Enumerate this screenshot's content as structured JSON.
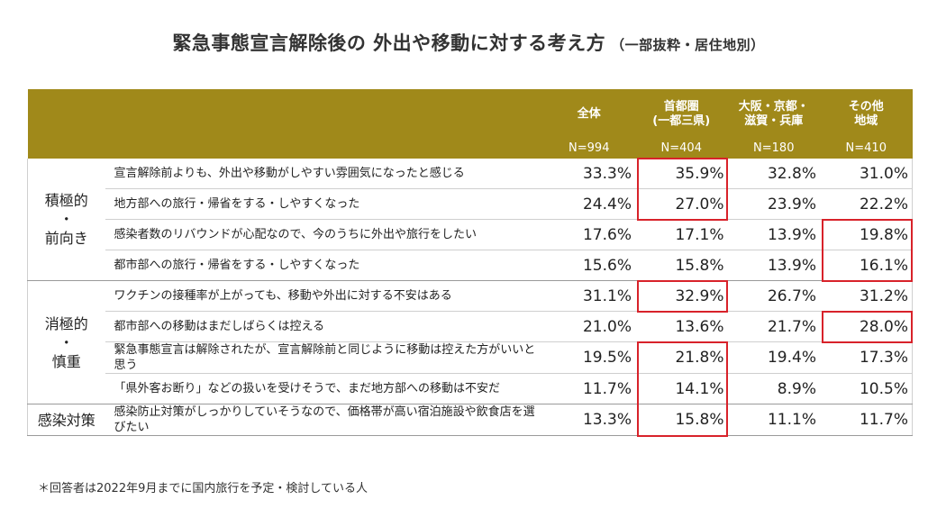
{
  "title": "緊急事態宣言解除後の 外出や移動に対する考え方",
  "subtitle": "（一部抜粋・居住地別）",
  "highlight_color": "#d8222a",
  "header_color": "#a0891a",
  "columns": [
    {
      "label": "全体",
      "n": "N=994"
    },
    {
      "label": "首都圏\n(一都三県)",
      "n": "N=404"
    },
    {
      "label": "大阪・京都・\n滋賀・兵庫",
      "n": "N=180"
    },
    {
      "label": "その他\n地域",
      "n": "N=410"
    }
  ],
  "groups": [
    {
      "label": "積極的\n・\n前向き"
    },
    {
      "label": "消極的\n・\n慎重"
    },
    {
      "label": "感染対策"
    }
  ],
  "note": "＊回答者は2022年9月までに国内旅行を予定・検討している人",
  "chart_data": {
    "type": "table",
    "title": "緊急事態宣言解除後の 外出や移動に対する考え方",
    "subtitle": "（一部抜粋・居住地別）",
    "columns": [
      "全体",
      "首都圏(一都三県)",
      "大阪・京都・滋賀・兵庫",
      "その他地域"
    ],
    "sample_sizes": [
      "N=994",
      "N=404",
      "N=180",
      "N=410"
    ],
    "rows": [
      {
        "group": "積極的・前向き",
        "item": "宣言解除前よりも、外出や移動がしやすい雰囲気になったと感じる",
        "values": [
          "33.3%",
          "35.9%",
          "32.8%",
          "31.0%"
        ],
        "highlight": [
          false,
          true,
          false,
          false
        ]
      },
      {
        "group": "積極的・前向き",
        "item": "地方部への旅行・帰省をする・しやすくなった",
        "values": [
          "24.4%",
          "27.0%",
          "23.9%",
          "22.2%"
        ],
        "highlight": [
          false,
          true,
          false,
          false
        ]
      },
      {
        "group": "積極的・前向き",
        "item": "感染者数のリバウンドが心配なので、今のうちに外出や旅行をしたい",
        "values": [
          "17.6%",
          "17.1%",
          "13.9%",
          "19.8%"
        ],
        "highlight": [
          false,
          false,
          false,
          true
        ]
      },
      {
        "group": "積極的・前向き",
        "item": "都市部への旅行・帰省をする・しやすくなった",
        "values": [
          "15.6%",
          "15.8%",
          "13.9%",
          "16.1%"
        ],
        "highlight": [
          false,
          false,
          false,
          true
        ]
      },
      {
        "group": "消極的・慎重",
        "item": "ワクチンの接種率が上がっても、移動や外出に対する不安はある",
        "values": [
          "31.1%",
          "32.9%",
          "26.7%",
          "31.2%"
        ],
        "highlight": [
          false,
          true,
          false,
          false
        ]
      },
      {
        "group": "消極的・慎重",
        "item": "都市部への移動はまだしばらくは控える",
        "values": [
          "21.0%",
          "13.6%",
          "21.7%",
          "28.0%"
        ],
        "highlight": [
          false,
          false,
          false,
          true
        ]
      },
      {
        "group": "消極的・慎重",
        "item": "緊急事態宣言は解除されたが、宣言解除前と同じように移動は控えた方がいいと思う",
        "values": [
          "19.5%",
          "21.8%",
          "19.4%",
          "17.3%"
        ],
        "highlight": [
          false,
          true,
          false,
          false
        ]
      },
      {
        "group": "消極的・慎重",
        "item": "「県外客お断り」などの扱いを受けそうで、まだ地方部への移動は不安だ",
        "values": [
          "11.7%",
          "14.1%",
          "8.9%",
          "10.5%"
        ],
        "highlight": [
          false,
          true,
          false,
          false
        ]
      },
      {
        "group": "感染対策",
        "item": "感染防止対策がしっかりしていそうなので、価格帯が高い宿泊施設や飲食店を選びたい",
        "values": [
          "13.3%",
          "15.8%",
          "11.1%",
          "11.7%"
        ],
        "highlight": [
          false,
          true,
          false,
          false
        ]
      }
    ]
  }
}
